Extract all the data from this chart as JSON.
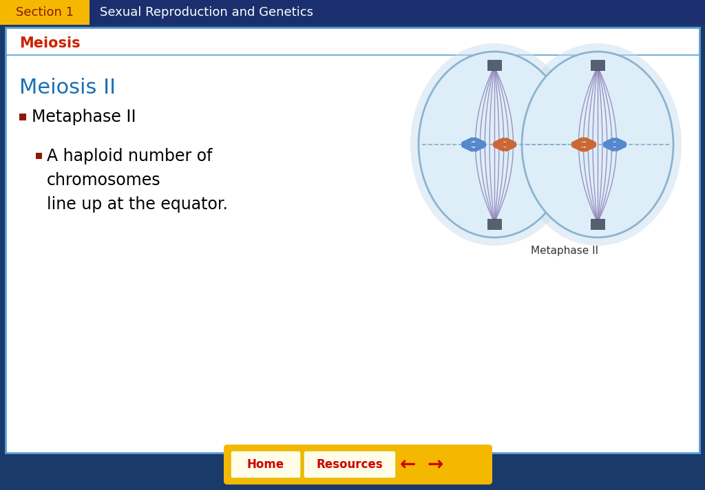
{
  "header_bg": "#1b2f6e",
  "header_yellow_bg": "#f5b800",
  "section_label": "Section 1",
  "section_label_color": "#8b1a00",
  "header_title": "Sexual Reproduction and Genetics",
  "header_title_color": "#ffffff",
  "slide_bg": "#ffffff",
  "border_color": "#5a9fd4",
  "subheader_text": "Meiosis",
  "subheader_color": "#cc2200",
  "main_heading": "Meiosis II",
  "main_heading_color": "#1a6fb5",
  "bullet1_marker_color": "#8b1a00",
  "bullet1_text": "Metaphase II",
  "bullet2_marker_color": "#8b1a00",
  "bullet2_line1": "A haploid number of",
  "bullet2_line2": "chromosomes",
  "bullet2_line3": "line up at the equator.",
  "image_caption": "Metaphase II",
  "outer_bg": "#1a3a6b",
  "bottom_bar_color": "#f5b800",
  "home_text": "Home",
  "resources_text": "Resources",
  "button_text_color": "#cc0000",
  "cell_fill": "#ddeef8",
  "cell_edge": "#8ab4d0",
  "spindle_color": "#9080b8",
  "pole_color": "#556070",
  "chrom_blue": "#5588cc",
  "chrom_orange": "#cc6633",
  "equator_color": "#88aacc"
}
